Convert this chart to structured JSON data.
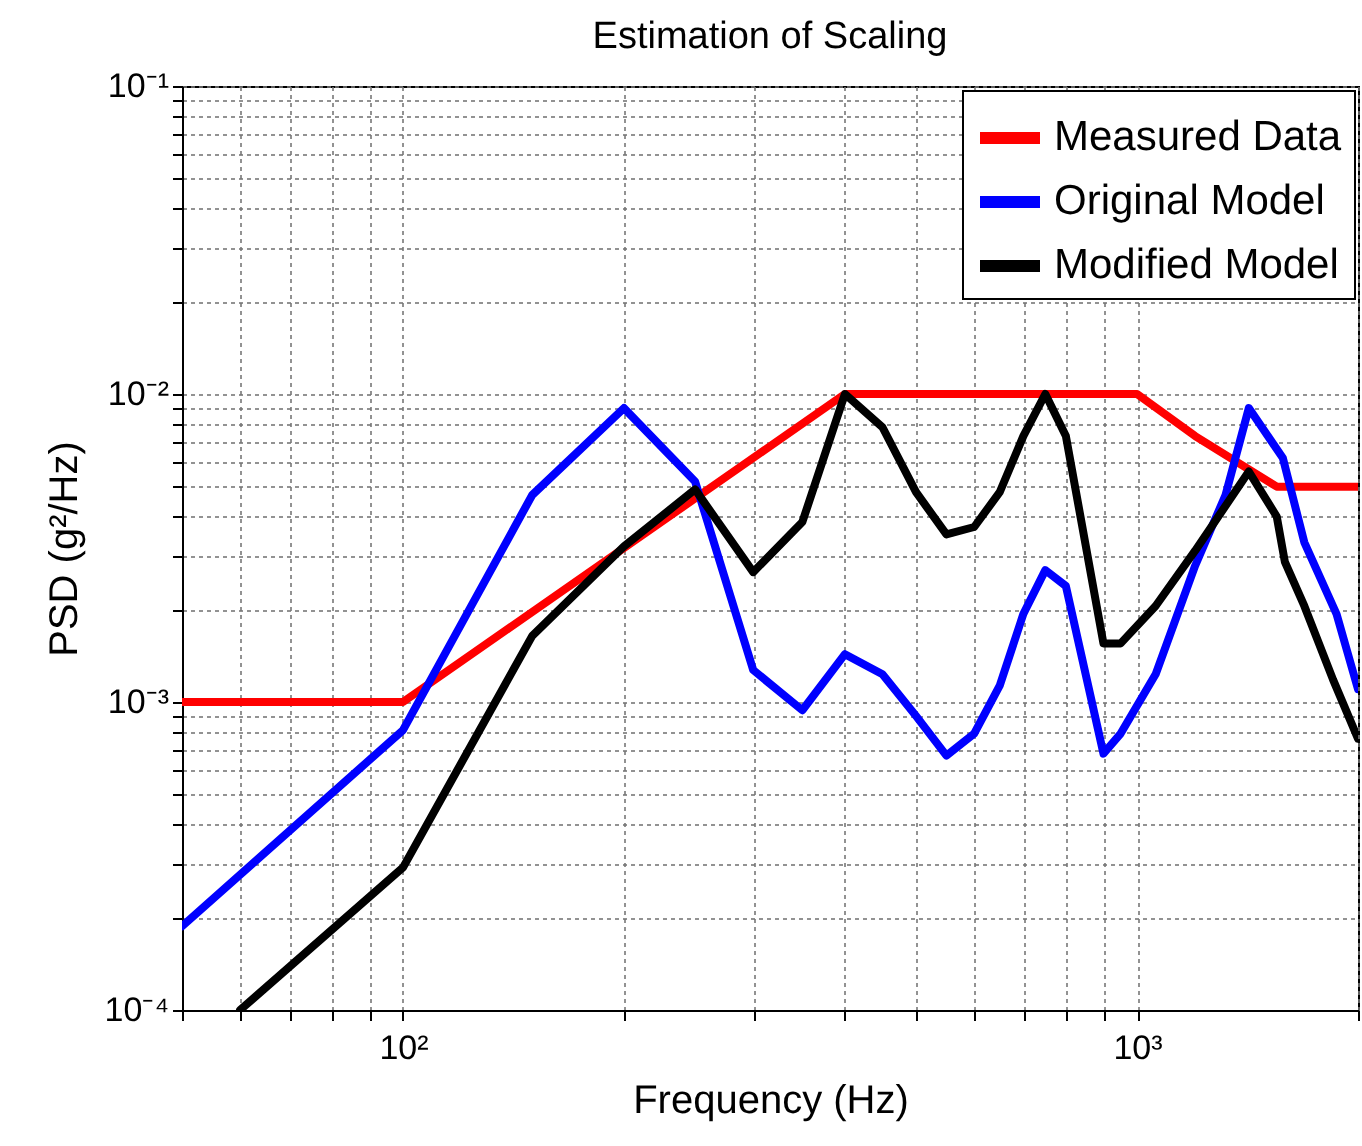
{
  "chart_data": {
    "type": "line",
    "title": "Estimation of Scaling",
    "xlabel": "Frequency (Hz)",
    "ylabel": "PSD (g²/Hz)",
    "log": "xy",
    "grid": true,
    "legend": "top right",
    "line_style": "solid",
    "marker": "none",
    "xlim": [
      50,
      2000
    ],
    "ylim": [
      0.0001,
      0.1
    ],
    "xticks": [
      {
        "value": 50,
        "label": null
      },
      {
        "value": 60,
        "label": null
      },
      {
        "value": 70,
        "label": null
      },
      {
        "value": 80,
        "label": null
      },
      {
        "value": 90,
        "label": null
      },
      {
        "value": 100,
        "label": "10²"
      },
      {
        "value": 200,
        "label": null
      },
      {
        "value": 300,
        "label": null
      },
      {
        "value": 400,
        "label": null
      },
      {
        "value": 500,
        "label": null
      },
      {
        "value": 600,
        "label": null
      },
      {
        "value": 700,
        "label": null
      },
      {
        "value": 800,
        "label": null
      },
      {
        "value": 900,
        "label": null
      },
      {
        "value": 1000,
        "label": "10³"
      },
      {
        "value": 2000,
        "label": null
      }
    ],
    "yticks": [
      {
        "value": 0.0001,
        "label": "10⁻⁴"
      },
      {
        "value": 0.0002,
        "label": null
      },
      {
        "value": 0.0003,
        "label": null
      },
      {
        "value": 0.0004,
        "label": null
      },
      {
        "value": 0.0005,
        "label": null
      },
      {
        "value": 0.0006,
        "label": null
      },
      {
        "value": 0.0007,
        "label": null
      },
      {
        "value": 0.0008,
        "label": null
      },
      {
        "value": 0.0009,
        "label": null
      },
      {
        "value": 0.001,
        "label": "10⁻³"
      },
      {
        "value": 0.002,
        "label": null
      },
      {
        "value": 0.003,
        "label": null
      },
      {
        "value": 0.004,
        "label": null
      },
      {
        "value": 0.005,
        "label": null
      },
      {
        "value": 0.006,
        "label": null
      },
      {
        "value": 0.007,
        "label": null
      },
      {
        "value": 0.008,
        "label": null
      },
      {
        "value": 0.009,
        "label": null
      },
      {
        "value": 0.01,
        "label": "10⁻²"
      },
      {
        "value": 0.02,
        "label": null
      },
      {
        "value": 0.03,
        "label": null
      },
      {
        "value": 0.04,
        "label": null
      },
      {
        "value": 0.05,
        "label": null
      },
      {
        "value": 0.06,
        "label": null
      },
      {
        "value": 0.07,
        "label": null
      },
      {
        "value": 0.08,
        "label": null
      },
      {
        "value": 0.09,
        "label": null
      },
      {
        "value": 0.1,
        "label": "10⁻¹"
      }
    ],
    "series": [
      {
        "name": "Measured Data",
        "color": "#ff0000",
        "x": [
          50,
          100,
          400,
          1000,
          1200,
          1550,
          2000
        ],
        "values": [
          0.001,
          0.001,
          0.01,
          0.01,
          0.0073,
          0.005,
          0.005
        ]
      },
      {
        "name": "Original Model",
        "color": "#0000ff",
        "x": [
          50,
          100,
          150,
          200,
          250,
          300,
          350,
          400,
          450,
          500,
          550,
          600,
          650,
          700,
          750,
          800,
          900,
          950,
          1060,
          1200,
          1320,
          1420,
          1580,
          1690,
          1870,
          2000
        ],
        "values": [
          0.000187,
          0.00081,
          0.0047,
          0.009,
          0.0052,
          0.00127,
          0.00094,
          0.00143,
          0.00123,
          0.0009,
          0.00067,
          0.00079,
          0.00113,
          0.00193,
          0.00268,
          0.00238,
          0.00068,
          0.00079,
          0.00123,
          0.00277,
          0.0047,
          0.009,
          0.0062,
          0.0033,
          0.00193,
          0.0011
        ]
      },
      {
        "name": "Modified Model",
        "color": "#000000",
        "x": [
          60,
          100,
          150,
          200,
          250,
          300,
          350,
          400,
          450,
          500,
          550,
          600,
          650,
          700,
          750,
          800,
          900,
          950,
          1060,
          1200,
          1420,
          1550,
          1590,
          1690,
          1850,
          2000
        ],
        "values": [
          0.0001,
          0.00029,
          0.00164,
          0.0032,
          0.0049,
          0.00264,
          0.00384,
          0.01,
          0.0078,
          0.0048,
          0.0035,
          0.0037,
          0.0048,
          0.0073,
          0.01,
          0.0073,
          0.00155,
          0.00155,
          0.00205,
          0.0031,
          0.0056,
          0.004,
          0.00285,
          0.00205,
          0.00118,
          0.00076
        ]
      }
    ]
  }
}
